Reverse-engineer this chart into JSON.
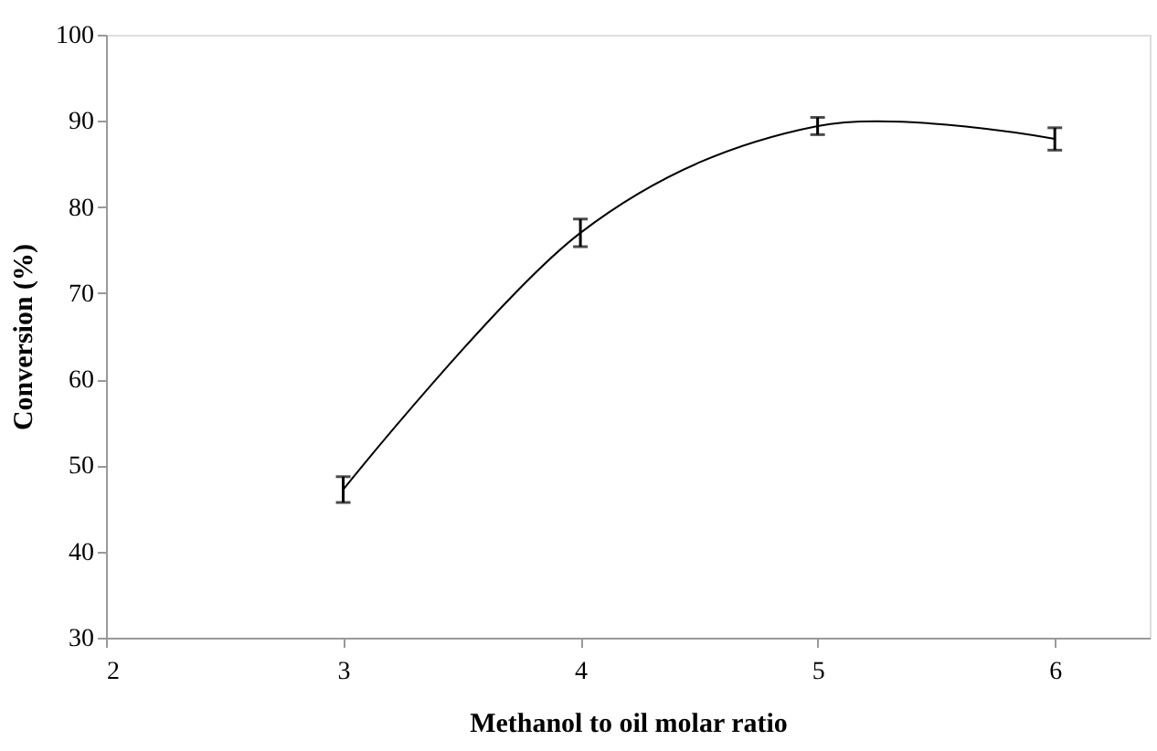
{
  "chart_data": {
    "type": "line",
    "xlabel": "Methanol to oil molar ratio",
    "ylabel": "Conversion (%)",
    "x": [
      3,
      4,
      5,
      6
    ],
    "series": [
      {
        "color": "#000000",
        "values": [
          47.2,
          77,
          89.4,
          87.9
        ],
        "errors": [
          1.5,
          1.6,
          1,
          1.3
        ]
      }
    ],
    "xlim": [
      2,
      6.4
    ],
    "xticks": [
      2,
      3,
      4,
      5,
      6
    ],
    "ylim": [
      30,
      100
    ],
    "yticks": [
      30,
      40,
      50,
      60,
      70,
      80,
      90,
      100
    ],
    "grid": false,
    "marker": "none",
    "line_style": "solid"
  }
}
